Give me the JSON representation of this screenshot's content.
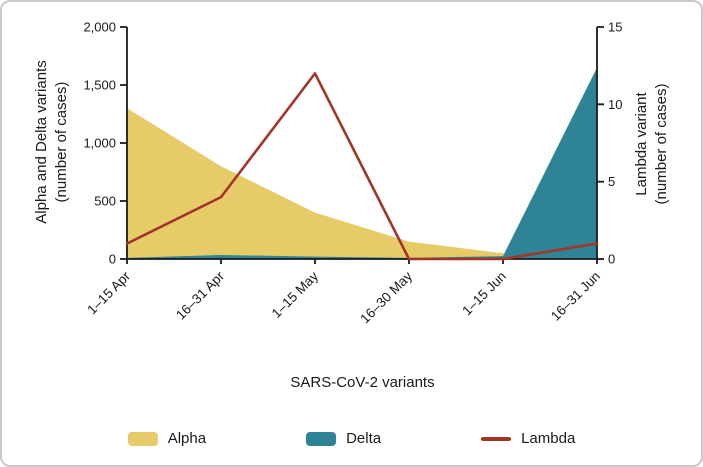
{
  "chart_data": {
    "type": "area",
    "categories": [
      "1–15 Apr",
      "16–31 Apr",
      "1–15 May",
      "16–30 May",
      "1–15 Jun",
      "16–31 Jun"
    ],
    "series": [
      {
        "name": "Alpha",
        "kind": "area",
        "axis": "left",
        "color": "#e7cb68",
        "values": [
          1300,
          800,
          400,
          150,
          50,
          30
        ]
      },
      {
        "name": "Delta",
        "kind": "area",
        "axis": "left",
        "color": "#2e8496",
        "values": [
          10,
          35,
          20,
          10,
          25,
          1650
        ]
      },
      {
        "name": "Lambda",
        "kind": "line",
        "axis": "right",
        "color": "#a23527",
        "values": [
          1,
          4,
          12,
          0,
          0,
          1
        ]
      }
    ],
    "left_axis": {
      "title_lines": [
        "Alpha and Delta variants",
        "(number of cases)"
      ],
      "ticks": [
        0,
        500,
        1000,
        1500,
        2000
      ],
      "tick_labels": [
        "0",
        "500",
        "1,000",
        "1,500",
        "2,000"
      ],
      "max": 2000
    },
    "right_axis": {
      "title_lines": [
        "Lambda variant",
        "(number of cases)"
      ],
      "ticks": [
        0,
        5,
        10,
        15
      ],
      "tick_labels": [
        "0",
        "5",
        "10",
        "15"
      ],
      "max": 15
    },
    "xlabel": "SARS-CoV-2 variants",
    "legend_position": "bottom",
    "grid": false
  },
  "colors": {
    "axis": "#1a1a1a",
    "text": "#1a1a1a",
    "card_border": "#c9c9c9",
    "background": "#ffffff"
  }
}
